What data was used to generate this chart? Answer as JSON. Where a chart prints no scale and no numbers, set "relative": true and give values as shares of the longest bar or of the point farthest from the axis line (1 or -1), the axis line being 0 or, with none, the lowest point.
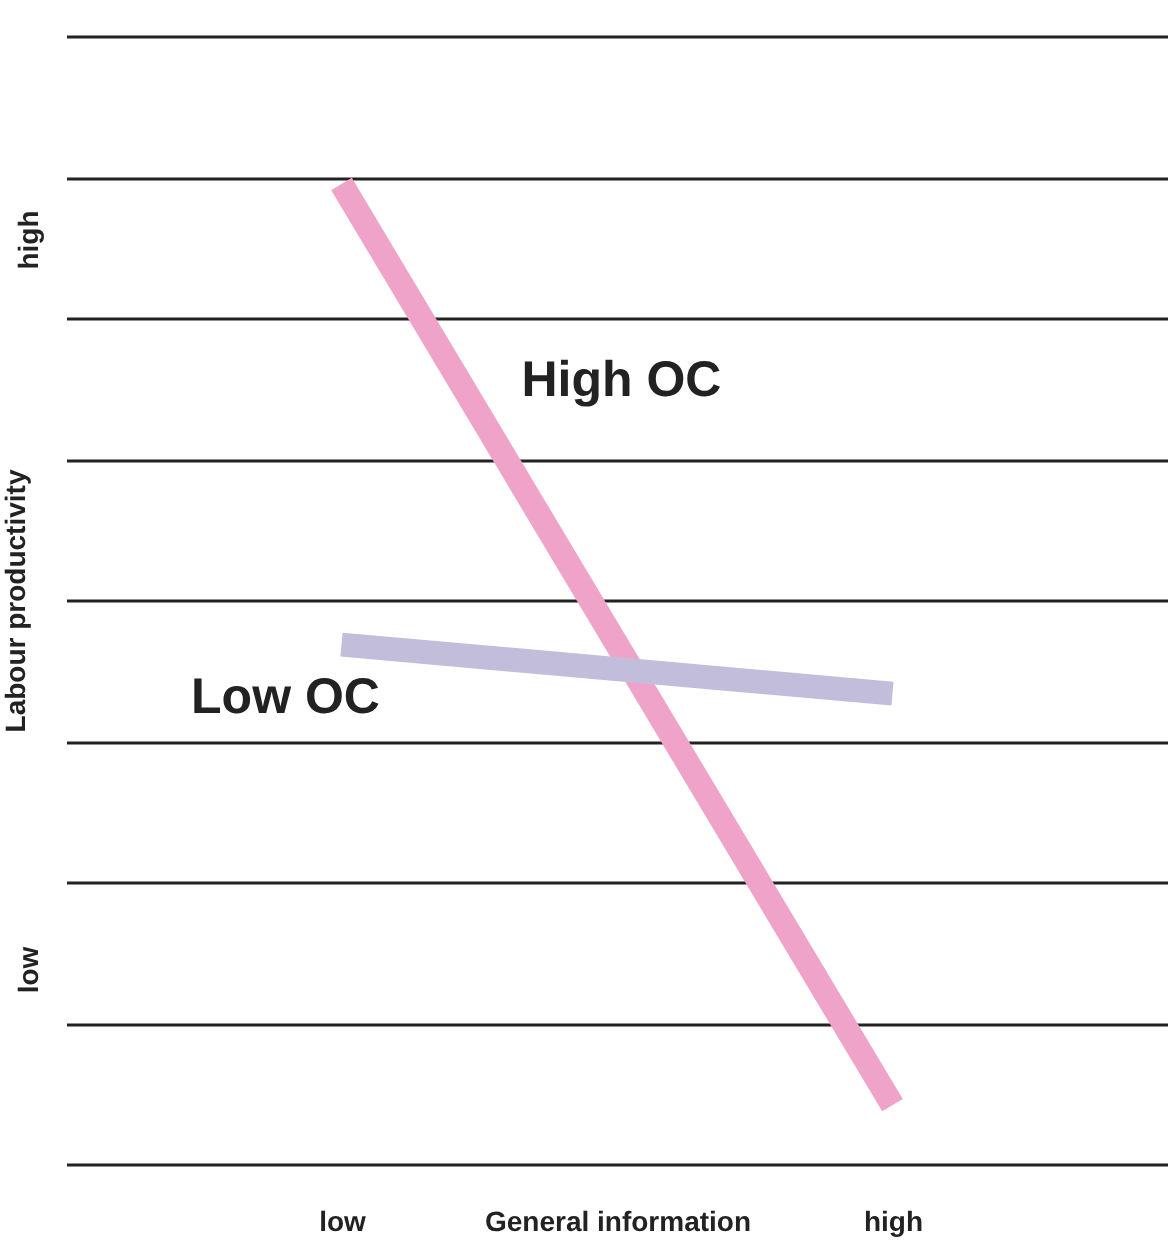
{
  "chart_data": {
    "type": "line",
    "xlabel": "General information",
    "ylabel": "Labour productivity",
    "categories": [
      "low",
      "high"
    ],
    "relative": true,
    "annotations": [
      "high",
      "low"
    ],
    "grid": "y",
    "series": [
      {
        "name": "High OC",
        "color": "#f0a3c8",
        "values": [
          1,
          0.06
        ]
      },
      {
        "name": "Low OC",
        "color": "#c3bddc",
        "values": [
          0.53,
          0.48
        ]
      }
    ]
  }
}
